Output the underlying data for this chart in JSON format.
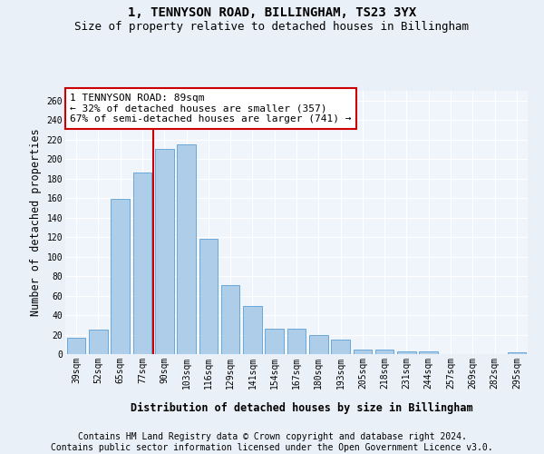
{
  "title1": "1, TENNYSON ROAD, BILLINGHAM, TS23 3YX",
  "title2": "Size of property relative to detached houses in Billingham",
  "xlabel": "Distribution of detached houses by size in Billingham",
  "ylabel": "Number of detached properties",
  "categories": [
    "39sqm",
    "52sqm",
    "65sqm",
    "77sqm",
    "90sqm",
    "103sqm",
    "116sqm",
    "129sqm",
    "141sqm",
    "154sqm",
    "167sqm",
    "180sqm",
    "193sqm",
    "205sqm",
    "218sqm",
    "231sqm",
    "244sqm",
    "257sqm",
    "269sqm",
    "282sqm",
    "295sqm"
  ],
  "values": [
    17,
    25,
    159,
    186,
    210,
    215,
    118,
    71,
    49,
    26,
    26,
    20,
    15,
    5,
    5,
    3,
    3,
    0,
    0,
    0,
    2
  ],
  "bar_color": "#aecde8",
  "bar_edge_color": "#5a9fd4",
  "property_line_color": "#cc0000",
  "annotation_line1": "1 TENNYSON ROAD: 89sqm",
  "annotation_line2": "← 32% of detached houses are smaller (357)",
  "annotation_line3": "67% of semi-detached houses are larger (741) →",
  "annotation_box_color": "#ffffff",
  "annotation_box_edge_color": "#cc0000",
  "ylim": [
    0,
    270
  ],
  "yticks": [
    0,
    20,
    40,
    60,
    80,
    100,
    120,
    140,
    160,
    180,
    200,
    220,
    240,
    260
  ],
  "footer1": "Contains HM Land Registry data © Crown copyright and database right 2024.",
  "footer2": "Contains public sector information licensed under the Open Government Licence v3.0.",
  "bg_color": "#eaf0f7",
  "plot_bg_color": "#f0f5fb",
  "grid_color": "#ffffff",
  "title1_fontsize": 10,
  "title2_fontsize": 9,
  "axis_label_fontsize": 8.5,
  "tick_fontsize": 7,
  "annotation_fontsize": 8,
  "footer_fontsize": 7
}
